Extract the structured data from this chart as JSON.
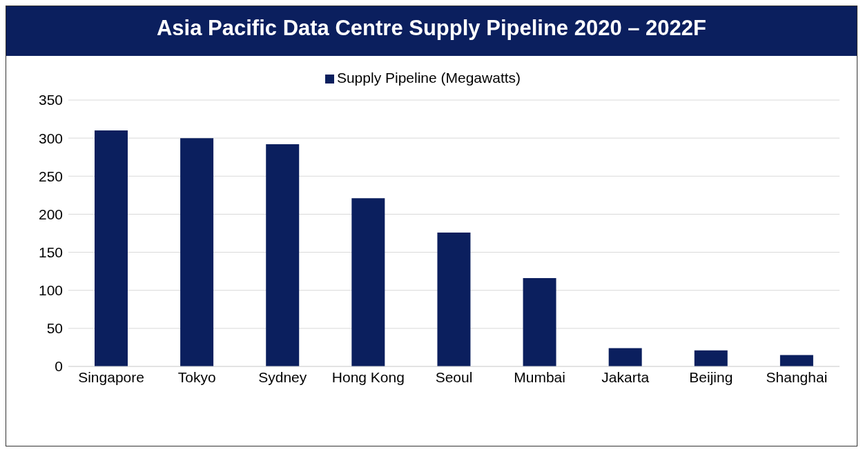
{
  "chart_data": {
    "type": "bar",
    "title": "Asia Pacific Data Centre Supply Pipeline 2020 – 2022F",
    "categories": [
      "Singapore",
      "Tokyo",
      "Sydney",
      "Hong Kong",
      "Seoul",
      "Mumbai",
      "Jakarta",
      "Beijing",
      "Shanghai"
    ],
    "series": [
      {
        "name": "Supply Pipeline (Megawatts)",
        "color": "#0b1f5e",
        "values": [
          310,
          300,
          292,
          221,
          176,
          116,
          24,
          21,
          15
        ]
      }
    ],
    "ylim": [
      0,
      350
    ],
    "yticks": [
      0,
      50,
      100,
      150,
      200,
      250,
      300,
      350
    ],
    "grid": "y",
    "legend": "top"
  }
}
